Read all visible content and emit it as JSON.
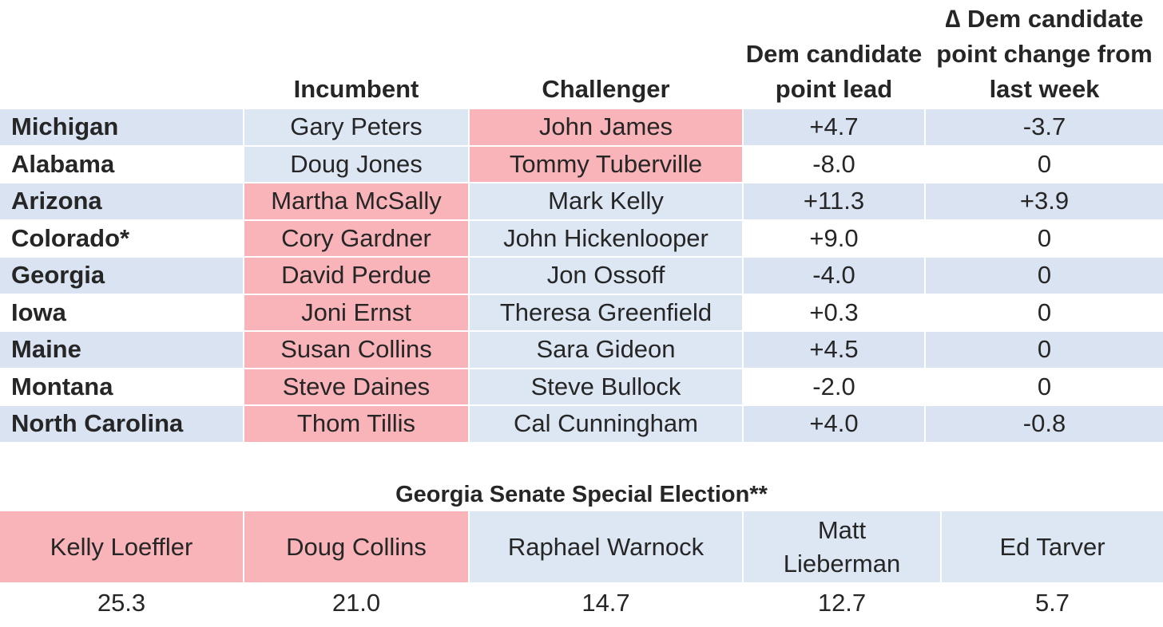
{
  "headers": {
    "state": "",
    "incumbent": "Incumbent",
    "challenger": "Challenger",
    "lead": "Dem candidate point lead",
    "change": "∆ Dem candidate point change from last week"
  },
  "rows": [
    {
      "state": "Michigan",
      "incumbent": "Gary Peters",
      "incumbent_party": "dem",
      "challenger": "John James",
      "challenger_party": "rep",
      "lead": "+4.7",
      "change": "-3.7"
    },
    {
      "state": "Alabama",
      "incumbent": "Doug Jones",
      "incumbent_party": "dem",
      "challenger": "Tommy Tuberville",
      "challenger_party": "rep",
      "lead": "-8.0",
      "change": "0"
    },
    {
      "state": "Arizona",
      "incumbent": "Martha McSally",
      "incumbent_party": "rep",
      "challenger": "Mark Kelly",
      "challenger_party": "dem",
      "lead": "+11.3",
      "change": "+3.9"
    },
    {
      "state": "Colorado*",
      "incumbent": "Cory Gardner",
      "incumbent_party": "rep",
      "challenger": "John Hickenlooper",
      "challenger_party": "dem",
      "lead": "+9.0",
      "change": "0"
    },
    {
      "state": "Georgia",
      "incumbent": "David Perdue",
      "incumbent_party": "rep",
      "challenger": "Jon Ossoff",
      "challenger_party": "dem",
      "lead": "-4.0",
      "change": "0"
    },
    {
      "state": "Iowa",
      "incumbent": "Joni Ernst",
      "incumbent_party": "rep",
      "challenger": "Theresa Greenfield",
      "challenger_party": "dem",
      "lead": "+0.3",
      "change": "0"
    },
    {
      "state": "Maine",
      "incumbent": "Susan Collins",
      "incumbent_party": "rep",
      "challenger": "Sara Gideon",
      "challenger_party": "dem",
      "lead": "+4.5",
      "change": "0"
    },
    {
      "state": "Montana",
      "incumbent": "Steve Daines",
      "incumbent_party": "rep",
      "challenger": "Steve Bullock",
      "challenger_party": "dem",
      "lead": "-2.0",
      "change": "0"
    },
    {
      "state": "North Carolina",
      "incumbent": "Thom Tillis",
      "incumbent_party": "rep",
      "challenger": "Cal Cunningham",
      "challenger_party": "dem",
      "lead": "+4.0",
      "change": "-0.8"
    }
  ],
  "special": {
    "title": "Georgia Senate Special Election**",
    "candidates": [
      {
        "name": "Kelly Loeffler",
        "party": "rep",
        "value": "25.3"
      },
      {
        "name": "Doug Collins",
        "party": "rep",
        "value": "21.0"
      },
      {
        "name": "Raphael Warnock",
        "party": "dem",
        "value": "14.7"
      },
      {
        "name": "Matt Lieberman",
        "party": "dem",
        "value": "12.7"
      },
      {
        "name": "Ed Tarver",
        "party": "dem",
        "value": "5.7"
      }
    ]
  },
  "colors": {
    "dem_fill": "#dce7f3",
    "rep_fill": "#f8b4b9",
    "band_fill": "#d9e3f1"
  }
}
